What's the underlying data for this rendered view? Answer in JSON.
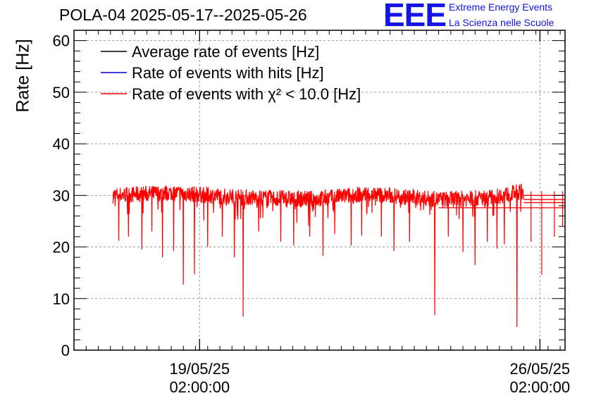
{
  "header": {
    "title": "POLA-04 2025-05-17--2025-05-26",
    "logo_text": "EEE",
    "logo_line1": "Extreme Energy Events",
    "logo_line2": "La Scienza nelle Scuole",
    "logo_color": "#1414e6"
  },
  "chart_data": {
    "type": "line",
    "title": "POLA-04 2025-05-17--2025-05-26",
    "xlabel": "",
    "ylabel": "Rate [Hz]",
    "ylim": [
      0,
      62
    ],
    "yticks": [
      0,
      10,
      20,
      30,
      40,
      50,
      60
    ],
    "x_unit": "days since 2025-05-17 00:00",
    "xlim": [
      -0.5,
      9.6
    ],
    "xticks": [
      {
        "day": 2.0833,
        "label_date": "19/05/25",
        "label_time": "02:00:00"
      },
      {
        "day": 9.0833,
        "label_date": "26/05/25",
        "label_time": "02:00:00"
      }
    ],
    "grid": true,
    "data_start_day": 0.3,
    "data_end_day": 8.75,
    "baseline_profile": [
      {
        "day": 0.3,
        "value": 30.0
      },
      {
        "day": 1.5,
        "value": 30.5
      },
      {
        "day": 3.0,
        "value": 29.6
      },
      {
        "day": 4.5,
        "value": 29.3
      },
      {
        "day": 5.5,
        "value": 30.3
      },
      {
        "day": 7.0,
        "value": 29.2
      },
      {
        "day": 8.0,
        "value": 29.5
      },
      {
        "day": 8.75,
        "value": 30.8
      }
    ],
    "noise_amplitude": 1.6,
    "dips": [
      {
        "day": 0.42,
        "value": 21.2
      },
      {
        "day": 0.62,
        "value": 22.0
      },
      {
        "day": 0.9,
        "value": 19.5
      },
      {
        "day": 1.1,
        "value": 23.0
      },
      {
        "day": 1.32,
        "value": 18.0
      },
      {
        "day": 1.55,
        "value": 19.2
      },
      {
        "day": 1.75,
        "value": 12.7
      },
      {
        "day": 1.98,
        "value": 14.7
      },
      {
        "day": 2.25,
        "value": 20.0
      },
      {
        "day": 2.55,
        "value": 22.0
      },
      {
        "day": 2.8,
        "value": 18.0
      },
      {
        "day": 2.98,
        "value": 6.5
      },
      {
        "day": 3.3,
        "value": 23.0
      },
      {
        "day": 3.75,
        "value": 21.0
      },
      {
        "day": 4.02,
        "value": 20.3
      },
      {
        "day": 4.35,
        "value": 22.0
      },
      {
        "day": 4.62,
        "value": 18.3
      },
      {
        "day": 4.86,
        "value": 22.5
      },
      {
        "day": 5.2,
        "value": 20.3
      },
      {
        "day": 5.42,
        "value": 22.2
      },
      {
        "day": 5.82,
        "value": 22.0
      },
      {
        "day": 6.08,
        "value": 19.2
      },
      {
        "day": 6.4,
        "value": 21.0
      },
      {
        "day": 6.92,
        "value": 6.8
      },
      {
        "day": 7.2,
        "value": 22.0
      },
      {
        "day": 7.5,
        "value": 19.0
      },
      {
        "day": 7.75,
        "value": 16.5
      },
      {
        "day": 8.0,
        "value": 21.0
      },
      {
        "day": 8.2,
        "value": 19.7
      },
      {
        "day": 8.35,
        "value": 20.5
      },
      {
        "day": 8.61,
        "value": 4.5
      },
      {
        "day": 8.9,
        "value": 21.0
      },
      {
        "day": 9.12,
        "value": 14.6
      },
      {
        "day": 9.38,
        "value": 22.0
      },
      {
        "day": 9.55,
        "value": 24.0
      }
    ],
    "tail_lines": [
      {
        "from_day": 8.75,
        "value": 30.0
      },
      {
        "from_day": 8.75,
        "value": 29.2
      },
      {
        "from_day": 8.75,
        "value": 28.6
      },
      {
        "from_day": 7.0,
        "value": 27.6
      }
    ],
    "series": [
      {
        "name": "Average rate of events [Hz]",
        "color": "#000000"
      },
      {
        "name": "Rate of events with hits [Hz]",
        "color": "#0000cc"
      },
      {
        "name": "Rate of events with χ² < 10.0 [Hz]",
        "color": "#ff0000"
      }
    ],
    "legend_placement": "top-left"
  }
}
